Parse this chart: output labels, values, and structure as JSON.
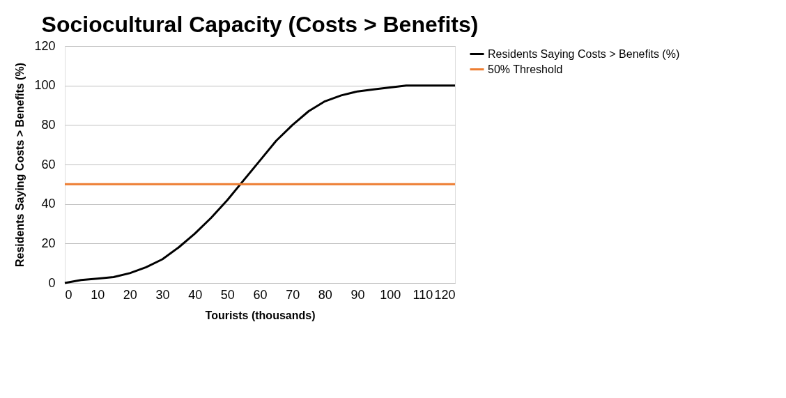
{
  "chart_data": {
    "type": "line",
    "title": "Sociocultural Capacity (Costs > Benefits)",
    "xlabel": "Tourists (thousands)",
    "ylabel": "Residents Saying Costs > Benefits (%)",
    "x": [
      0,
      5,
      10,
      15,
      20,
      25,
      30,
      35,
      40,
      45,
      50,
      55,
      60,
      65,
      70,
      75,
      80,
      85,
      90,
      95,
      100,
      105,
      110,
      115,
      120
    ],
    "series": [
      {
        "name": "Residents Saying Costs > Benefits (%)",
        "color": "#000000",
        "values": [
          0,
          1.5,
          2.2,
          3,
          5,
          8,
          12,
          18,
          25,
          33,
          42,
          52,
          62,
          72,
          80,
          87,
          92,
          95,
          97,
          98,
          99,
          100,
          100,
          100,
          100
        ]
      },
      {
        "name": "50% Threshold",
        "color": "#ed7d31",
        "x": [
          0,
          120
        ],
        "values": [
          50,
          50
        ]
      }
    ],
    "xlim": [
      0,
      120
    ],
    "xticks": [
      0,
      10,
      20,
      30,
      40,
      50,
      60,
      70,
      80,
      90,
      100,
      110,
      120
    ],
    "ylim": [
      0,
      120
    ],
    "yticks": [
      0,
      20,
      40,
      60,
      80,
      100,
      120
    ],
    "grid": "y",
    "legend": "right",
    "marker": "none",
    "line_style": "solid"
  }
}
